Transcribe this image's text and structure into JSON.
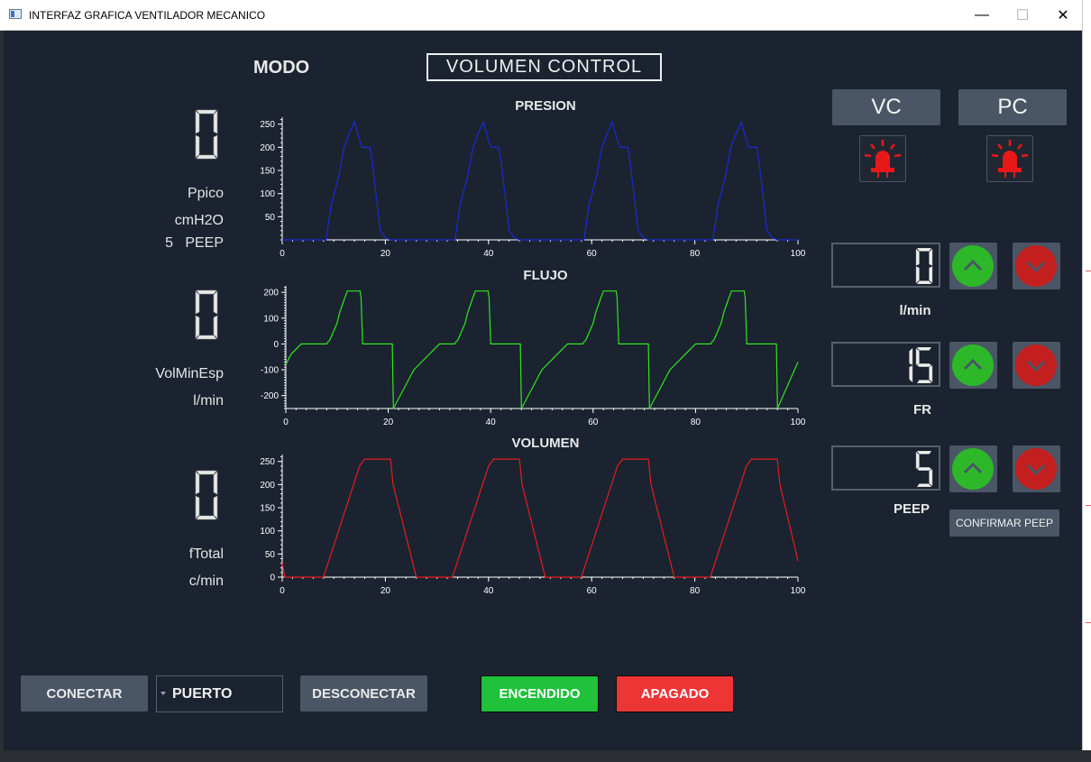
{
  "window": {
    "title": "INTERFAZ GRAFICA VENTILADOR MECANICO",
    "minimize": "—",
    "maximize": "☐",
    "close": "✕"
  },
  "header": {
    "modo_label": "MODO",
    "mode_value": "VOLUMEN CONTROL"
  },
  "readouts": {
    "ppico": {
      "value": "0",
      "label": "Ppico",
      "unit": "cmH2O",
      "peep_value": "5",
      "peep_label": "PEEP"
    },
    "volminesp": {
      "value": "0",
      "label": "VolMinEsp",
      "unit": "l/min"
    },
    "ftotal": {
      "value": "0",
      "label": "fTotal",
      "unit": "c/min"
    }
  },
  "mode_buttons": {
    "vc": "VC",
    "pc": "PC"
  },
  "controls": [
    {
      "key": "flow",
      "value": "0",
      "label": "l/min"
    },
    {
      "key": "fr",
      "value": "15",
      "label": "FR"
    },
    {
      "key": "peep",
      "value": "5",
      "label": "PEEP"
    }
  ],
  "confirm_peep": "CONFIRMAR PEEP",
  "bottom": {
    "conectar": "CONECTAR",
    "puerto": "PUERTO",
    "desconectar": "DESCONECTAR",
    "encendido": "ENCENDIDO",
    "apagado": "APAGADO"
  },
  "colors": {
    "background": "#1b2330",
    "presion": "#1a2ad8",
    "flujo": "#2ee61e",
    "volumen": "#e41c1c",
    "on": "#1fc23a",
    "off": "#ee3535",
    "alarm": "#e81818"
  },
  "chart_data": [
    {
      "type": "line",
      "title": "PRESION",
      "xlim": [
        0,
        100
      ],
      "ylim": [
        0,
        265
      ],
      "xticks": [
        0,
        20,
        40,
        60,
        80,
        100
      ],
      "yticks": [
        50,
        100,
        150,
        200,
        250
      ],
      "series": [
        {
          "color": "#1a2ad8",
          "x": [
            0,
            8.5,
            9.5,
            11,
            12,
            13,
            14,
            15,
            15.5,
            17,
            17.5,
            19,
            20,
            21,
            100
          ],
          "y": [
            0,
            0,
            75,
            140,
            200,
            230,
            255,
            215,
            200,
            200,
            165,
            20,
            5,
            0,
            0
          ],
          "period": 25,
          "cycles": 4
        }
      ]
    },
    {
      "type": "line",
      "title": "FLUJO",
      "xlim": [
        0,
        100
      ],
      "ylim": [
        -250,
        225
      ],
      "xticks": [
        0,
        20,
        40,
        60,
        80,
        100
      ],
      "yticks": [
        -200,
        -100,
        0,
        100,
        200
      ],
      "series": [
        {
          "color": "#2ee61e",
          "x": [
            0,
            1,
            3,
            8,
            8.3,
            8.6,
            10,
            10.5,
            11,
            12,
            14.5,
            14.7,
            15,
            20.8,
            21,
            25,
            30,
            33,
            33.3,
            33.6,
            35,
            35.5,
            36,
            37,
            39.5,
            39.7,
            40,
            45.8,
            46,
            50,
            55,
            58,
            58.3,
            58.6,
            60,
            60.5,
            61,
            62,
            64.5,
            64.7,
            65,
            70.8,
            71,
            75,
            80,
            83,
            83.3,
            83.6,
            85,
            85.5,
            86,
            87,
            89.5,
            89.7,
            90,
            95.8,
            96,
            100
          ],
          "y": [
            -80,
            -40,
            0,
            0,
            10,
            15,
            80,
            120,
            150,
            205,
            205,
            175,
            0,
            0,
            -250,
            -100,
            0,
            0,
            10,
            15,
            80,
            120,
            150,
            205,
            205,
            175,
            0,
            0,
            -250,
            -100,
            0,
            0,
            10,
            15,
            80,
            120,
            150,
            205,
            205,
            175,
            0,
            0,
            -250,
            -100,
            0,
            0,
            10,
            15,
            80,
            120,
            150,
            205,
            205,
            175,
            0,
            0,
            -250,
            -70
          ]
        }
      ]
    },
    {
      "type": "line",
      "title": "VOLUMEN",
      "xlim": [
        0,
        100
      ],
      "ylim": [
        0,
        265
      ],
      "xticks": [
        0,
        20,
        40,
        60,
        80,
        100
      ],
      "yticks": [
        0,
        50,
        100,
        150,
        200,
        250
      ],
      "series": [
        {
          "color": "#e41c1c",
          "x": [
            0,
            0.5,
            8,
            15,
            16,
            21,
            21.5,
            26,
            33,
            40,
            41,
            46,
            46.5,
            51,
            58,
            65,
            66,
            71,
            71.5,
            76,
            83,
            90,
            91,
            96,
            96.5,
            100
          ],
          "y": [
            30,
            0,
            0,
            240,
            255,
            255,
            200,
            0,
            0,
            240,
            255,
            255,
            200,
            0,
            0,
            240,
            255,
            255,
            200,
            0,
            0,
            240,
            255,
            255,
            200,
            35
          ]
        }
      ]
    }
  ]
}
